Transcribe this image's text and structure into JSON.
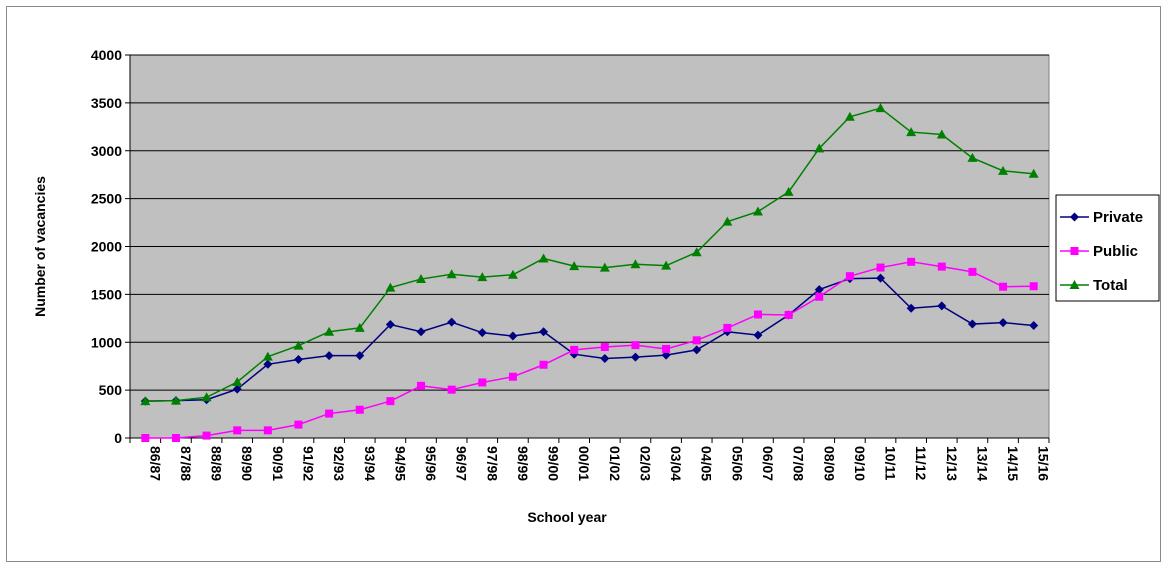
{
  "chart_data": {
    "type": "line",
    "title": "",
    "xlabel": "School year",
    "ylabel": "Number of vacancies",
    "ylim": [
      0,
      4000
    ],
    "yticks": [
      0,
      500,
      1000,
      1500,
      2000,
      2500,
      3000,
      3500,
      4000
    ],
    "grid": "horizontal",
    "legend_position": "right",
    "plot_background": "#c0c0c0",
    "categories": [
      "86/87",
      "87/88",
      "88/89",
      "89/90",
      "90/91",
      "91/92",
      "92/93",
      "93/94",
      "94/95",
      "95/96",
      "96/97",
      "97/98",
      "98/99",
      "99/00",
      "00/01",
      "01/02",
      "02/03",
      "03/04",
      "04/05",
      "05/06",
      "06/07",
      "07/08",
      "08/09",
      "09/10",
      "10/11",
      "11/12",
      "12/13",
      "13/14",
      "14/15",
      "15/16"
    ],
    "series": [
      {
        "name": "Private",
        "color": "#000080",
        "marker": "diamond",
        "values": [
          385,
          390,
          400,
          510,
          770,
          820,
          860,
          860,
          1185,
          1110,
          1210,
          1100,
          1065,
          1110,
          875,
          830,
          845,
          865,
          920,
          1110,
          1075,
          1285,
          1550,
          1665,
          1670,
          1355,
          1380,
          1190,
          1205,
          1175
        ]
      },
      {
        "name": "Public",
        "color": "#ff00ff",
        "marker": "square",
        "values": [
          0,
          0,
          25,
          80,
          80,
          140,
          255,
          295,
          385,
          545,
          505,
          580,
          640,
          765,
          920,
          950,
          970,
          930,
          1020,
          1150,
          1290,
          1285,
          1475,
          1690,
          1780,
          1840,
          1790,
          1735,
          1580,
          1585
        ]
      },
      {
        "name": "Total",
        "color": "#008000",
        "marker": "triangle",
        "values": [
          385,
          390,
          425,
          585,
          850,
          965,
          1110,
          1150,
          1570,
          1660,
          1710,
          1680,
          1705,
          1875,
          1795,
          1780,
          1815,
          1800,
          1940,
          2260,
          2365,
          2570,
          3025,
          3355,
          3445,
          3195,
          3170,
          2925,
          2790,
          2760
        ]
      }
    ]
  }
}
